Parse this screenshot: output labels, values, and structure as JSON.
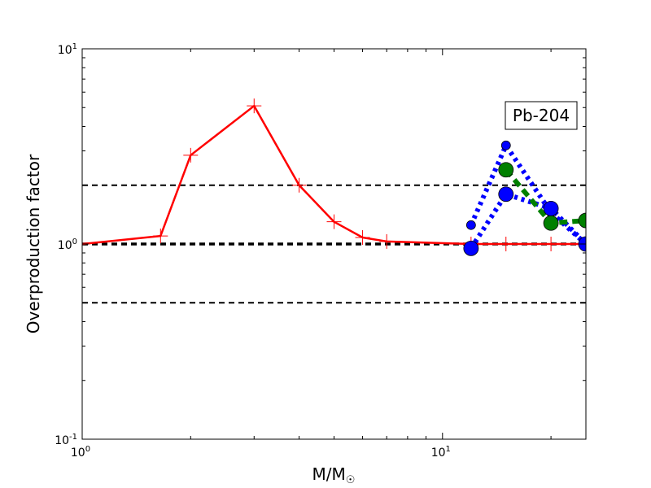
{
  "chart_data": {
    "type": "line",
    "xscale": "log",
    "yscale": "log",
    "xlim": [
      1,
      25
    ],
    "ylim": [
      0.1,
      10
    ],
    "xlabel": "M/M☉",
    "ylabel": "Overproduction factor",
    "x_ticks": [
      {
        "value": 1,
        "base": "10",
        "exp": "0"
      },
      {
        "value": 10,
        "base": "10",
        "exp": "1"
      }
    ],
    "y_ticks": [
      {
        "value": 0.1,
        "base": "10",
        "exp": "-1"
      },
      {
        "value": 1,
        "base": "10",
        "exp": "0"
      },
      {
        "value": 10,
        "base": "10",
        "exp": "1"
      }
    ],
    "annotation": "Pb-204",
    "reference_lines": [
      {
        "y": 2.0,
        "style": "dashed"
      },
      {
        "y": 1.0,
        "style": "dashed-bold"
      },
      {
        "y": 0.5,
        "style": "dashed"
      }
    ],
    "series": [
      {
        "color": "#ff0000",
        "line": "solid",
        "marker": "plus",
        "points": [
          [
            1.0,
            1.0
          ],
          [
            1.65,
            1.1
          ],
          [
            2.0,
            2.85
          ],
          [
            3.0,
            5.1
          ],
          [
            4.0,
            2.0
          ],
          [
            5.0,
            1.3
          ],
          [
            6.0,
            1.08
          ],
          [
            7.0,
            1.03
          ],
          [
            12.0,
            1.0
          ],
          [
            15.0,
            1.0
          ],
          [
            20.0,
            1.0
          ],
          [
            25.0,
            1.0
          ]
        ]
      },
      {
        "color": "#0000ff",
        "line": "dotted-thick",
        "marker": "circle-small",
        "points": [
          [
            12.0,
            1.25
          ],
          [
            15.0,
            3.2
          ],
          [
            20.0,
            1.45
          ],
          [
            25.0,
            1.0
          ]
        ]
      },
      {
        "color": "#0000ff",
        "line": "dotted-thick",
        "marker": "circle-large",
        "points": [
          [
            12.0,
            0.95
          ],
          [
            15.0,
            1.8
          ],
          [
            20.0,
            1.52
          ],
          [
            25.0,
            1.0
          ]
        ]
      },
      {
        "color": "#008000",
        "line": "dashed-thick",
        "marker": "circle-large",
        "points": [
          [
            15.0,
            2.4
          ],
          [
            20.0,
            1.28
          ],
          [
            25.0,
            1.32
          ]
        ]
      }
    ]
  }
}
